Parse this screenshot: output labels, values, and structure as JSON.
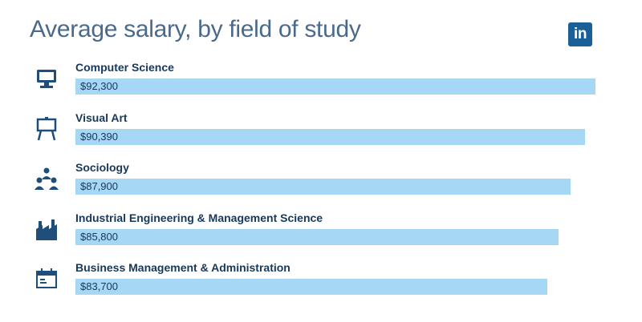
{
  "title": "Average salary, by field of study",
  "logo_text": "in",
  "colors": {
    "bar": "#a6d7f4",
    "text": "#17385a",
    "title": "#4a6a8c",
    "icon": "#1f4e7a",
    "logo": "#1a5f97"
  },
  "chart_data": {
    "type": "bar",
    "orientation": "horizontal",
    "categories": [
      "Computer Science",
      "Visual Art",
      "Sociology",
      "Industrial Engineering & Management Science",
      "Business Management & Administration"
    ],
    "values": [
      92300,
      90390,
      87900,
      85800,
      83700
    ],
    "value_labels": [
      "$92,300",
      "$90,390",
      "$87,900",
      "$85,800",
      "$83,700"
    ],
    "icons": [
      "computer-icon",
      "easel-icon",
      "people-icon",
      "factory-icon",
      "calendar-icon"
    ],
    "title": "Average salary, by field of study",
    "xlabel": "",
    "ylabel": "",
    "grid": false,
    "legend": "none"
  }
}
